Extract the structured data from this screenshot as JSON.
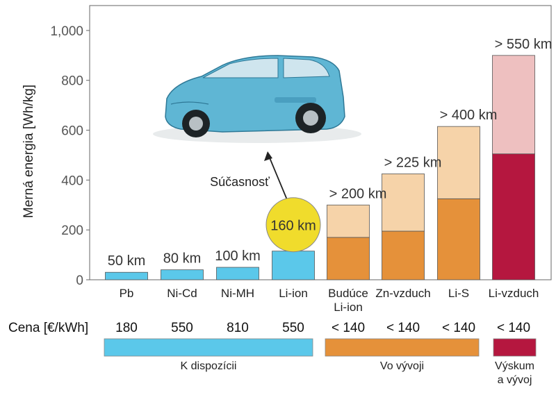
{
  "chart_data": {
    "type": "bar",
    "ylabel": "Merná energia  [Wh/kg]",
    "ylim": [
      0,
      1100
    ],
    "yticks": [
      "0",
      "200",
      "400",
      "600",
      "800",
      "1,000"
    ],
    "ytick_values": [
      0,
      200,
      400,
      600,
      800,
      1000
    ],
    "categories": [
      "Pb",
      "Ni-Cd",
      "Ni-MH",
      "Li-ion",
      "Budúce\nLi-ion",
      "Zn-vzduch",
      "Li-S",
      "Li-vzduch"
    ],
    "series": [
      {
        "values": [
          30,
          40,
          50,
          115,
          170,
          195,
          325,
          505
        ]
      },
      {
        "values": [
          0,
          0,
          0,
          0,
          130,
          230,
          290,
          395
        ]
      }
    ],
    "range_labels": [
      "50 km",
      "80 km",
      "100 km",
      "160 km",
      "> 200 km",
      "> 225 km",
      "> 400 km",
      "> 550 km"
    ],
    "bar_colors": [
      [
        "#5bc8ea",
        null
      ],
      [
        "#5bc8ea",
        null
      ],
      [
        "#5bc8ea",
        null
      ],
      [
        "#5bc8ea",
        null
      ],
      [
        "#e5913a",
        "#f6d3a9"
      ],
      [
        "#e5913a",
        "#f6d3a9"
      ],
      [
        "#e5913a",
        "#f6d3a9"
      ],
      [
        "#b5173f",
        "#eec0c0"
      ]
    ],
    "annotation": "Súčasnosť",
    "highlight_color": "#f0dc2c",
    "cost_label": "Cena [€/kWh]",
    "costs": [
      "180",
      "550",
      "810",
      "550",
      "< 140",
      "< 140",
      "< 140",
      "< 140"
    ],
    "status_groups": [
      {
        "label": "K dispozícii",
        "color": "#5bc8ea"
      },
      {
        "label": "Vo vývoji",
        "color": "#e5913a"
      },
      {
        "label": "Výskum\na vývoj",
        "color": "#b5173f"
      }
    ]
  }
}
